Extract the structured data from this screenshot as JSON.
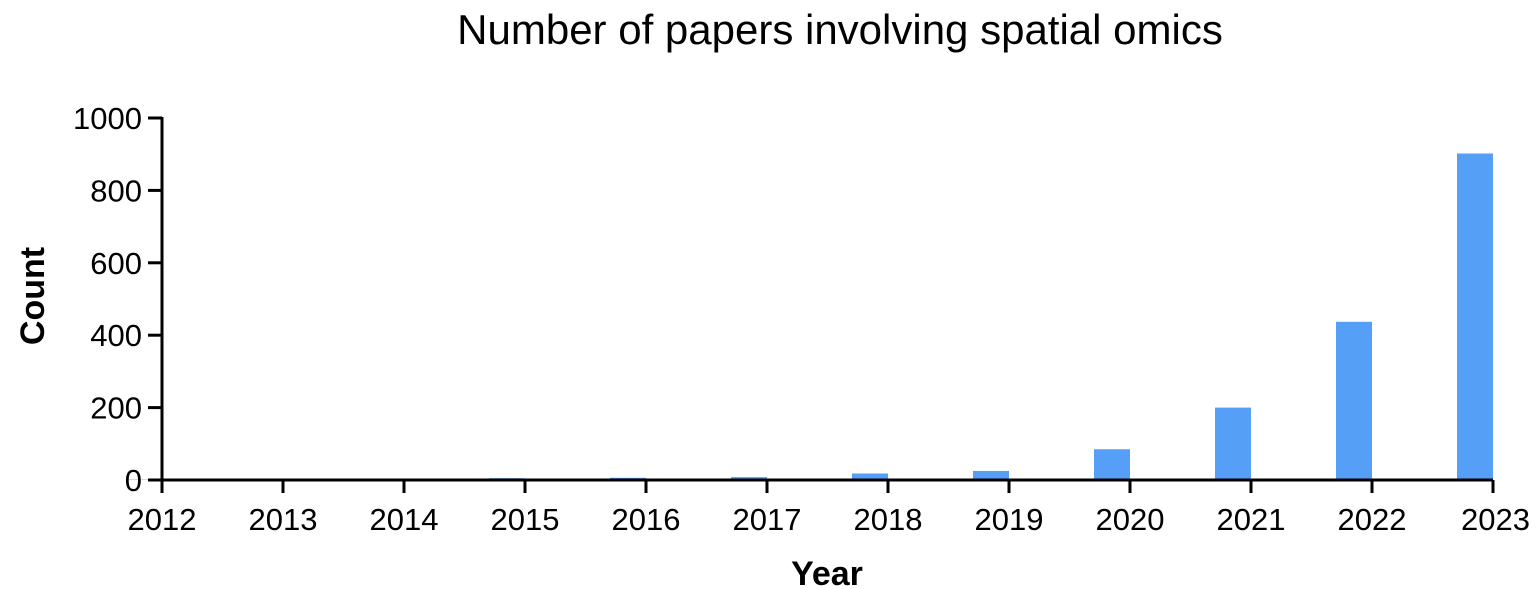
{
  "chart_data": {
    "type": "bar",
    "title": "Number of papers involving spatial omics",
    "xlabel": "Year",
    "ylabel": "Count",
    "categories": [
      "2012",
      "2013",
      "2014",
      "2015",
      "2016",
      "2017",
      "2018",
      "2019",
      "2020",
      "2021",
      "2022",
      "2023"
    ],
    "values": [
      1,
      2,
      4,
      5,
      6,
      8,
      18,
      25,
      85,
      200,
      437,
      902
    ],
    "ylim": [
      0,
      1000
    ],
    "yticks": [
      0,
      200,
      400,
      600,
      800,
      1000
    ],
    "bar_color": "#559ff7",
    "grid": false,
    "legend": "none"
  }
}
